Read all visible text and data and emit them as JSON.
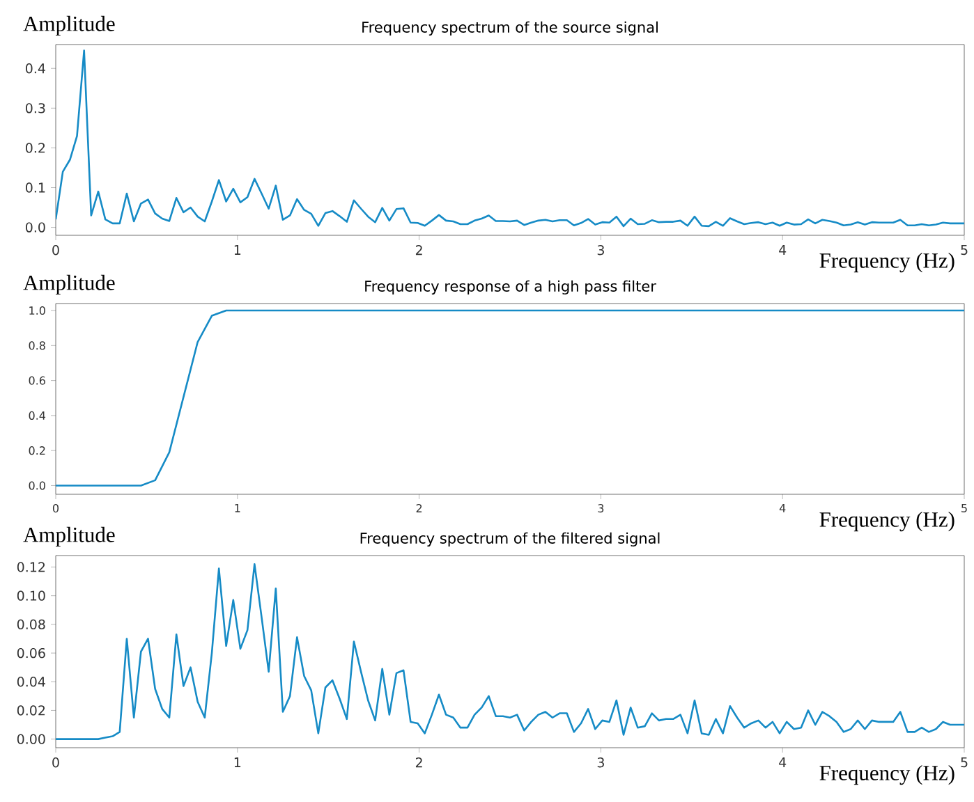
{
  "chart_data": [
    {
      "type": "line",
      "title": "Frequency spectrum of the source signal",
      "xlabel": "Frequency (Hz)",
      "ylabel": "Amplitude",
      "color": "#168bc6",
      "xlim": [
        0,
        5
      ],
      "ylim": [
        -0.02,
        0.46
      ],
      "xticks": [
        0,
        1,
        2,
        3,
        4,
        5
      ],
      "yticks": [
        {
          "value": 0,
          "label": "0.0"
        },
        {
          "value": 0.1,
          "label": "0.1"
        },
        {
          "value": 0.2,
          "label": "0.2"
        },
        {
          "value": 0.3,
          "label": "0.3"
        },
        {
          "value": 0.4,
          "label": "0.4"
        }
      ],
      "x": [
        0,
        0.039,
        0.078,
        0.117,
        0.156,
        0.195,
        0.234,
        0.273,
        0.313,
        0.352,
        0.391,
        0.43,
        0.469,
        0.508,
        0.547,
        0.586,
        0.625,
        0.664,
        0.703,
        0.742,
        0.781,
        0.82,
        0.859,
        0.898,
        0.938,
        0.977,
        1.016,
        1.055,
        1.094,
        1.133,
        1.172,
        1.211,
        1.25,
        1.289,
        1.328,
        1.367,
        1.406,
        1.445,
        1.484,
        1.523,
        1.563,
        1.602,
        1.641,
        1.68,
        1.719,
        1.758,
        1.797,
        1.836,
        1.875,
        1.914,
        1.953,
        1.992,
        2.031,
        2.07,
        2.109,
        2.148,
        2.188,
        2.227,
        2.266,
        2.305,
        2.344,
        2.383,
        2.422,
        2.461,
        2.5,
        2.539,
        2.578,
        2.617,
        2.656,
        2.695,
        2.734,
        2.773,
        2.813,
        2.852,
        2.891,
        2.93,
        2.969,
        3.008,
        3.047,
        3.086,
        3.125,
        3.164,
        3.203,
        3.242,
        3.281,
        3.32,
        3.359,
        3.398,
        3.438,
        3.477,
        3.516,
        3.555,
        3.594,
        3.633,
        3.672,
        3.711,
        3.75,
        3.789,
        3.828,
        3.867,
        3.906,
        3.945,
        3.984,
        4.023,
        4.063,
        4.102,
        4.141,
        4.18,
        4.219,
        4.258,
        4.297,
        4.336,
        4.375,
        4.414,
        4.453,
        4.492,
        4.531,
        4.57,
        4.609,
        4.648,
        4.688,
        4.727,
        4.766,
        4.805,
        4.844,
        4.883,
        4.922,
        4.961,
        5
      ],
      "values": [
        0.02,
        0.14,
        0.17,
        0.23,
        0.445,
        0.03,
        0.09,
        0.02,
        0.01,
        0.01,
        0.085,
        0.015,
        0.06,
        0.07,
        0.035,
        0.022,
        0.016,
        0.074,
        0.038,
        0.05,
        0.027,
        0.015,
        0.065,
        0.119,
        0.065,
        0.097,
        0.063,
        0.076,
        0.122,
        0.085,
        0.047,
        0.105,
        0.019,
        0.03,
        0.071,
        0.044,
        0.034,
        0.004,
        0.036,
        0.041,
        0.028,
        0.014,
        0.068,
        0.047,
        0.027,
        0.013,
        0.049,
        0.017,
        0.046,
        0.048,
        0.012,
        0.011,
        0.004,
        0.017,
        0.031,
        0.017,
        0.015,
        0.008,
        0.008,
        0.017,
        0.022,
        0.03,
        0.016,
        0.016,
        0.015,
        0.017,
        0.006,
        0.012,
        0.017,
        0.019,
        0.015,
        0.018,
        0.018,
        0.005,
        0.011,
        0.021,
        0.007,
        0.013,
        0.012,
        0.027,
        0.003,
        0.022,
        0.008,
        0.009,
        0.018,
        0.013,
        0.014,
        0.014,
        0.017,
        0.004,
        0.027,
        0.004,
        0.003,
        0.014,
        0.004,
        0.023,
        0.015,
        0.008,
        0.011,
        0.013,
        0.008,
        0.012,
        0.004,
        0.012,
        0.007,
        0.008,
        0.02,
        0.01,
        0.019,
        0.016,
        0.012,
        0.005,
        0.007,
        0.013,
        0.007,
        0.013,
        0.012,
        0.012,
        0.012,
        0.019,
        0.005,
        0.005,
        0.008,
        0.005,
        0.007,
        0.012,
        0.01,
        0.01,
        0.01
      ]
    },
    {
      "type": "line",
      "title": "Frequency response of a high pass filter",
      "xlabel": "Frequency (Hz)",
      "ylabel": "Amplitude",
      "color": "#168bc6",
      "xlim": [
        0,
        5
      ],
      "ylim": [
        -0.05,
        1.04
      ],
      "xticks": [
        0,
        1,
        2,
        3,
        4,
        5
      ],
      "yticks": [
        {
          "value": 0,
          "label": "0.0"
        },
        {
          "value": 0.2,
          "label": "0.2"
        },
        {
          "value": 0.4,
          "label": "0.4"
        },
        {
          "value": 0.6,
          "label": "0.6"
        },
        {
          "value": 0.8,
          "label": "0.8"
        },
        {
          "value": 1,
          "label": "1.0"
        }
      ],
      "x": [
        0,
        0.469,
        0.547,
        0.625,
        0.781,
        0.859,
        0.938,
        1.016,
        5
      ],
      "values": [
        0,
        0,
        0.03,
        0.19,
        0.82,
        0.97,
        1.0,
        1.0,
        1.0
      ]
    },
    {
      "type": "line",
      "title": "Frequency spectrum of the filtered signal",
      "xlabel": "Frequency (Hz)",
      "ylabel": "Amplitude",
      "color": "#168bc6",
      "xlim": [
        0,
        5
      ],
      "ylim": [
        -0.006,
        0.128
      ],
      "xticks": [
        0,
        1,
        2,
        3,
        4,
        5
      ],
      "yticks": [
        {
          "value": 0,
          "label": "0.00"
        },
        {
          "value": 0.02,
          "label": "0.02"
        },
        {
          "value": 0.04,
          "label": "0.04"
        },
        {
          "value": 0.06,
          "label": "0.06"
        },
        {
          "value": 0.08,
          "label": "0.08"
        },
        {
          "value": 0.1,
          "label": "0.10"
        },
        {
          "value": 0.12,
          "label": "0.12"
        }
      ],
      "x": [
        0,
        0.039,
        0.078,
        0.117,
        0.156,
        0.195,
        0.234,
        0.273,
        0.313,
        0.352,
        0.391,
        0.43,
        0.469,
        0.508,
        0.547,
        0.586,
        0.625,
        0.664,
        0.703,
        0.742,
        0.781,
        0.82,
        0.859,
        0.898,
        0.938,
        0.977,
        1.016,
        1.055,
        1.094,
        1.133,
        1.172,
        1.211,
        1.25,
        1.289,
        1.328,
        1.367,
        1.406,
        1.445,
        1.484,
        1.523,
        1.563,
        1.602,
        1.641,
        1.68,
        1.719,
        1.758,
        1.797,
        1.836,
        1.875,
        1.914,
        1.953,
        1.992,
        2.031,
        2.07,
        2.109,
        2.148,
        2.188,
        2.227,
        2.266,
        2.305,
        2.344,
        2.383,
        2.422,
        2.461,
        2.5,
        2.539,
        2.578,
        2.617,
        2.656,
        2.695,
        2.734,
        2.773,
        2.813,
        2.852,
        2.891,
        2.93,
        2.969,
        3.008,
        3.047,
        3.086,
        3.125,
        3.164,
        3.203,
        3.242,
        3.281,
        3.32,
        3.359,
        3.398,
        3.438,
        3.477,
        3.516,
        3.555,
        3.594,
        3.633,
        3.672,
        3.711,
        3.75,
        3.789,
        3.828,
        3.867,
        3.906,
        3.945,
        3.984,
        4.023,
        4.063,
        4.102,
        4.141,
        4.18,
        4.219,
        4.258,
        4.297,
        4.336,
        4.375,
        4.414,
        4.453,
        4.492,
        4.531,
        4.57,
        4.609,
        4.648,
        4.688,
        4.727,
        4.766,
        4.805,
        4.844,
        4.883,
        4.922,
        4.961,
        5
      ],
      "values": [
        0,
        0,
        0,
        0,
        0,
        0,
        0,
        0.001,
        0.002,
        0.005,
        0.07,
        0.015,
        0.061,
        0.07,
        0.035,
        0.021,
        0.015,
        0.073,
        0.037,
        0.05,
        0.026,
        0.015,
        0.06,
        0.119,
        0.065,
        0.097,
        0.063,
        0.076,
        0.122,
        0.085,
        0.047,
        0.105,
        0.019,
        0.03,
        0.071,
        0.044,
        0.034,
        0.004,
        0.036,
        0.041,
        0.028,
        0.014,
        0.068,
        0.047,
        0.027,
        0.013,
        0.049,
        0.017,
        0.046,
        0.048,
        0.012,
        0.011,
        0.004,
        0.017,
        0.031,
        0.017,
        0.015,
        0.008,
        0.008,
        0.017,
        0.022,
        0.03,
        0.016,
        0.016,
        0.015,
        0.017,
        0.006,
        0.012,
        0.017,
        0.019,
        0.015,
        0.018,
        0.018,
        0.005,
        0.011,
        0.021,
        0.007,
        0.013,
        0.012,
        0.027,
        0.003,
        0.022,
        0.008,
        0.009,
        0.018,
        0.013,
        0.014,
        0.014,
        0.017,
        0.004,
        0.027,
        0.004,
        0.003,
        0.014,
        0.004,
        0.023,
        0.015,
        0.008,
        0.011,
        0.013,
        0.008,
        0.012,
        0.004,
        0.012,
        0.007,
        0.008,
        0.02,
        0.01,
        0.019,
        0.016,
        0.012,
        0.005,
        0.007,
        0.013,
        0.007,
        0.013,
        0.012,
        0.012,
        0.012,
        0.019,
        0.005,
        0.005,
        0.008,
        0.005,
        0.007,
        0.012,
        0.01,
        0.01,
        0.01
      ]
    }
  ]
}
